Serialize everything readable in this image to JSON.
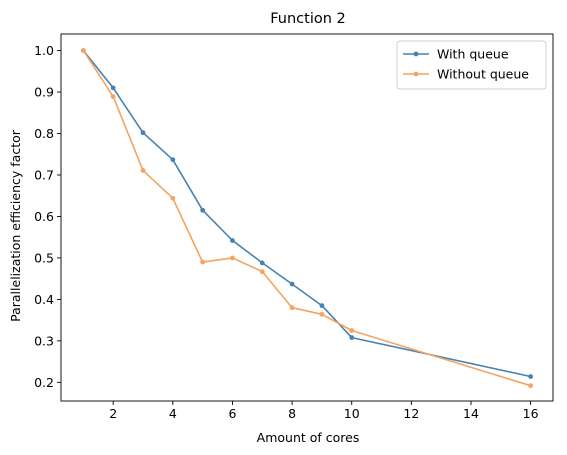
{
  "chart_data": {
    "type": "line",
    "title": "Function 2",
    "xlabel": "Amount of cores",
    "ylabel": "Parallelization efficiency factor",
    "xlim": [
      0.25,
      16.75
    ],
    "ylim": [
      0.155,
      1.04
    ],
    "xticks": [
      2,
      4,
      6,
      8,
      10,
      12,
      14,
      16
    ],
    "yticks": [
      0.2,
      0.3,
      0.4,
      0.5,
      0.6,
      0.7,
      0.8,
      0.9,
      1.0
    ],
    "xtick_labels": [
      "2",
      "4",
      "6",
      "8",
      "10",
      "12",
      "14",
      "16"
    ],
    "ytick_labels": [
      "0.2",
      "0.3",
      "0.4",
      "0.5",
      "0.6",
      "0.7",
      "0.8",
      "0.9",
      "1.0"
    ],
    "grid": false,
    "legend_position": "top-right",
    "series": [
      {
        "name": "With queue",
        "color": "#4682b4",
        "x": [
          1,
          2,
          3,
          4,
          5,
          6,
          7,
          8,
          9,
          10,
          16
        ],
        "y": [
          1.0,
          0.91,
          0.802,
          0.737,
          0.615,
          0.542,
          0.488,
          0.437,
          0.385,
          0.308,
          0.214
        ]
      },
      {
        "name": "Without queue",
        "color": "#f4a460",
        "x": [
          1,
          2,
          3,
          4,
          5,
          6,
          7,
          8,
          9,
          10,
          16
        ],
        "y": [
          1.0,
          0.889,
          0.711,
          0.644,
          0.49,
          0.5,
          0.467,
          0.38,
          0.364,
          0.325,
          0.192
        ]
      }
    ]
  }
}
